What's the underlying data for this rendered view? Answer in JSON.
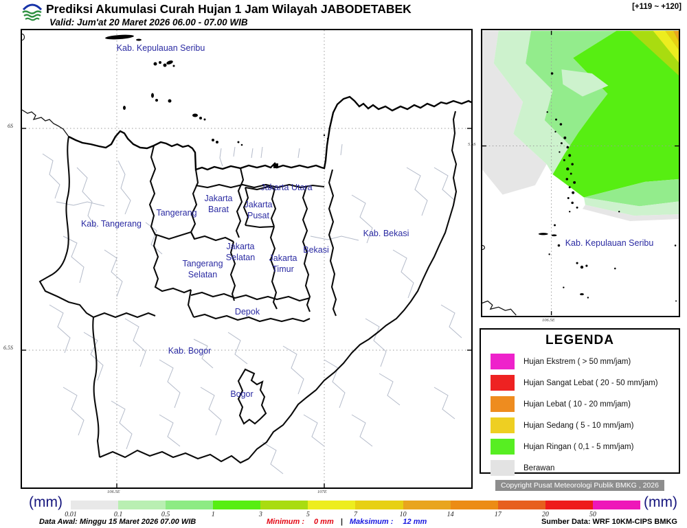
{
  "header": {
    "logo_text": "BMKG",
    "title": "Prediksi Akumulasi Curah Hujan 1 Jam Wilayah JABODETABEK",
    "valid": "Valid: Jum'at 20 Maret 2026 06.00 - 07.00 WIB",
    "hour_range": "[+119 ~ +120]"
  },
  "main_map": {
    "labels": [
      {
        "text": "Kab. Kepulauan Seribu"
      },
      {
        "text": "Jakarta Utara"
      },
      {
        "text": "Jakarta Barat"
      },
      {
        "text": "Tangerang"
      },
      {
        "text": "Jakarta Pusat"
      },
      {
        "text": "Kab. Tangerang"
      },
      {
        "text": "Jakarta Selatan"
      },
      {
        "text": "Bekasi"
      },
      {
        "text": "Kab. Bekasi"
      },
      {
        "text": "Tangerang Selatan"
      },
      {
        "text": "Jakarta Timur"
      },
      {
        "text": "Depok"
      },
      {
        "text": "Kab. Bogor"
      },
      {
        "text": "Bogor"
      }
    ],
    "y_ticks": [
      "6S",
      "6.5S"
    ],
    "x_ticks": [
      "106.5E",
      "107E"
    ]
  },
  "inset_map": {
    "label": "Kab. Kepulauan Seribu",
    "y_tick": "5.5S",
    "x_tick": "106.5E"
  },
  "legend": {
    "title": "LEGENDA",
    "items": [
      {
        "color": "#ee22cb",
        "label": "Hujan Ekstrem ( > 50 mm/jam)"
      },
      {
        "color": "#ee2222",
        "label": "Hujan Sangat Lebat ( 20 - 50 mm/jam)"
      },
      {
        "color": "#ee8c1f",
        "label": "Hujan Lebat ( 10 - 20 mm/jam)"
      },
      {
        "color": "#eecf22",
        "label": "Hujan Sedang ( 5 - 10 mm/jam)"
      },
      {
        "color": "#57ee22",
        "label": "Hujan Ringan ( 0,1 - 5 mm/jam)"
      },
      {
        "color": "#e3e3e3",
        "label": "Berawan"
      }
    ]
  },
  "copyright": "Copyright Pusat Meteorologi Publik BMKG , 2026",
  "colorbar": {
    "unit_left": "(mm)",
    "unit_right": "(mm)",
    "ticks": [
      "0.01",
      "0.1",
      "0.5",
      "1",
      "3",
      "5",
      "7",
      "10",
      "14",
      "17",
      "20",
      "50"
    ],
    "colors": [
      "#e8e8e8",
      "#b9efb2",
      "#8deb83",
      "#57ee12",
      "#a9dc10",
      "#eded1f",
      "#e7d013",
      "#e9a51e",
      "#ec8c15",
      "#e75f1e",
      "#ee1b1b",
      "#ee17b9"
    ]
  },
  "footer": {
    "data_awal": "Data Awal: Minggu 15 Maret 2026 07.00 WIB",
    "min_label": "Minimum :",
    "min_value": "0 mm",
    "separator": "|",
    "max_label": "Maksimum :",
    "max_value": "12 mm",
    "sumber": "Sumber Data: WRF 10KM-CIPS BMKG"
  }
}
